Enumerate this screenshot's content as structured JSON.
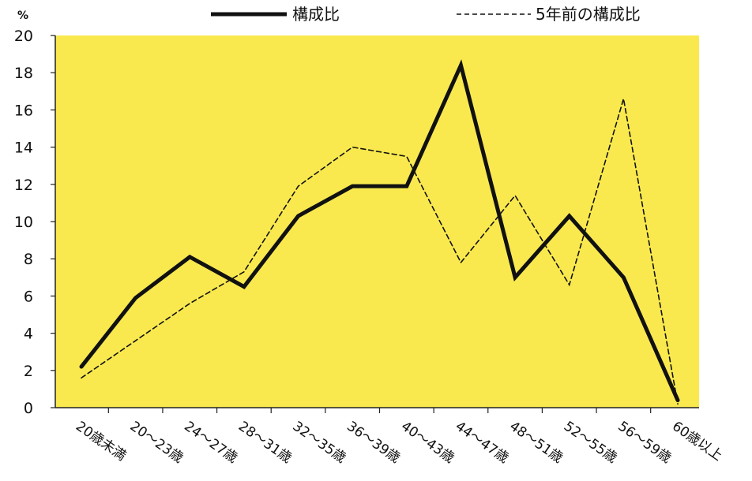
{
  "chart_data": {
    "type": "line",
    "ylabel": "%",
    "ylim": [
      0,
      20
    ],
    "yticks": [
      "0",
      "2",
      "4",
      "6",
      "8",
      "10",
      "12",
      "14",
      "16",
      "18",
      "20"
    ],
    "categories": [
      "20歳未満",
      "20～23歳",
      "24～27歳",
      "28～31歳",
      "32～35歳",
      "36～39歳",
      "40～43歳",
      "44～47歳",
      "48～51歳",
      "52～55歳",
      "56～59歳",
      "60歳以上"
    ],
    "series": [
      {
        "name": "構成比",
        "style": "solid",
        "color": "#111111",
        "values": [
          2.2,
          5.9,
          8.1,
          6.5,
          10.3,
          11.9,
          11.9,
          18.4,
          7.0,
          10.3,
          7.0,
          0.4
        ]
      },
      {
        "name": "5年前の構成比",
        "style": "dashed",
        "color": "#111111",
        "values": [
          1.6,
          3.6,
          5.6,
          7.3,
          11.9,
          14.0,
          13.5,
          7.8,
          11.4,
          6.6,
          16.6,
          0.2
        ]
      }
    ],
    "legend_position": "top",
    "plot_background": "#f9e94e",
    "grid": false
  }
}
